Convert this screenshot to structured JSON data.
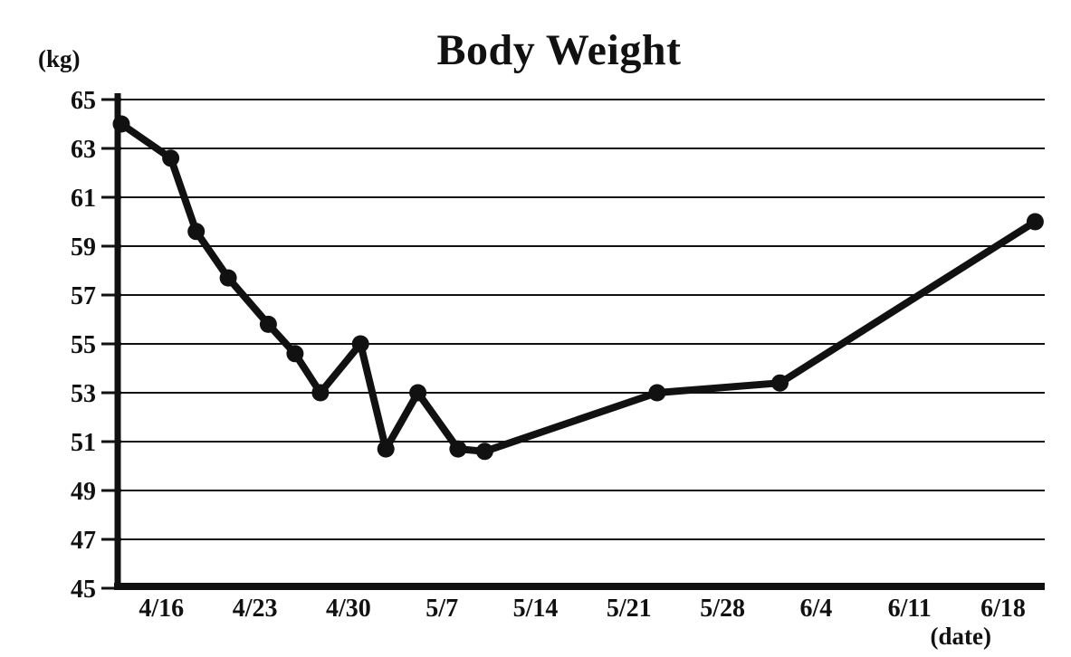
{
  "chart_data": {
    "type": "line",
    "title": "Body Weight",
    "y_axis_label": "(kg)",
    "x_axis_label": "(date)",
    "ylim": [
      45,
      65
    ],
    "y_tick_step": 2,
    "y_tick_labels": [
      "65",
      "63",
      "61",
      "59",
      "57",
      "55",
      "53",
      "51",
      "49",
      "47",
      "45"
    ],
    "x_tick_labels": [
      "4/16",
      "4/23",
      "4/30",
      "5/7",
      "5/14",
      "5/21",
      "5/28",
      "6/4",
      "6/11",
      "6/18"
    ],
    "x_tick_day_offsets": [
      0,
      7,
      14,
      21,
      28,
      35,
      42,
      49,
      56,
      63
    ],
    "grid": "horizontal-only",
    "legend": "none",
    "line_color": "#111111",
    "marker": "filled-circle",
    "series": [
      {
        "name": "body-weight",
        "points": [
          {
            "date_est": "4/13",
            "day": -3.0,
            "kg": 64.0
          },
          {
            "date_est": "4/17",
            "day": 0.7,
            "kg": 62.6
          },
          {
            "date_est": "4/19",
            "day": 2.6,
            "kg": 59.6
          },
          {
            "date_est": "4/21",
            "day": 5.0,
            "kg": 57.7
          },
          {
            "date_est": "4/24",
            "day": 8.0,
            "kg": 55.8
          },
          {
            "date_est": "4/26",
            "day": 10.0,
            "kg": 54.6
          },
          {
            "date_est": "4/28",
            "day": 11.9,
            "kg": 53.0
          },
          {
            "date_est": "5/1",
            "day": 14.9,
            "kg": 55.0
          },
          {
            "date_est": "5/3",
            "day": 16.8,
            "kg": 50.7
          },
          {
            "date_est": "5/5",
            "day": 19.2,
            "kg": 53.0
          },
          {
            "date_est": "5/8",
            "day": 22.2,
            "kg": 50.7
          },
          {
            "date_est": "5/10",
            "day": 24.2,
            "kg": 50.6
          },
          {
            "date_est": "5/23",
            "day": 37.1,
            "kg": 53.0
          },
          {
            "date_est": "6/1",
            "day": 46.3,
            "kg": 53.4
          },
          {
            "date_est": "6/20",
            "day": 65.4,
            "kg": 60.0
          }
        ]
      }
    ]
  }
}
